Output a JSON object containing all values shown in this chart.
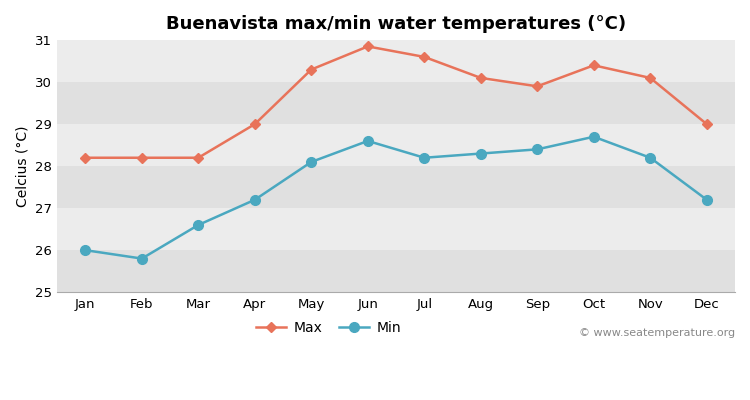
{
  "months": [
    "Jan",
    "Feb",
    "Mar",
    "Apr",
    "May",
    "Jun",
    "Jul",
    "Aug",
    "Sep",
    "Oct",
    "Nov",
    "Dec"
  ],
  "max_temps": [
    28.2,
    28.2,
    28.2,
    29.0,
    30.3,
    30.85,
    30.6,
    30.1,
    29.9,
    30.4,
    30.1,
    29.0
  ],
  "min_temps": [
    26.0,
    25.8,
    26.6,
    27.2,
    28.1,
    28.6,
    28.2,
    28.3,
    28.4,
    28.7,
    28.2,
    27.2
  ],
  "max_color": "#e8735a",
  "min_color": "#4aa8c0",
  "fig_bg_color": "#ffffff",
  "band_light": "#ececec",
  "band_dark": "#e0e0e0",
  "title": "Buenavista max/min water temperatures (°C)",
  "ylabel": "Celcius (°C)",
  "ylim": [
    25,
    31
  ],
  "yticks": [
    25,
    26,
    27,
    28,
    29,
    30,
    31
  ],
  "watermark": "© www.seatemperature.org",
  "title_fontsize": 13,
  "label_fontsize": 10,
  "tick_fontsize": 9.5
}
